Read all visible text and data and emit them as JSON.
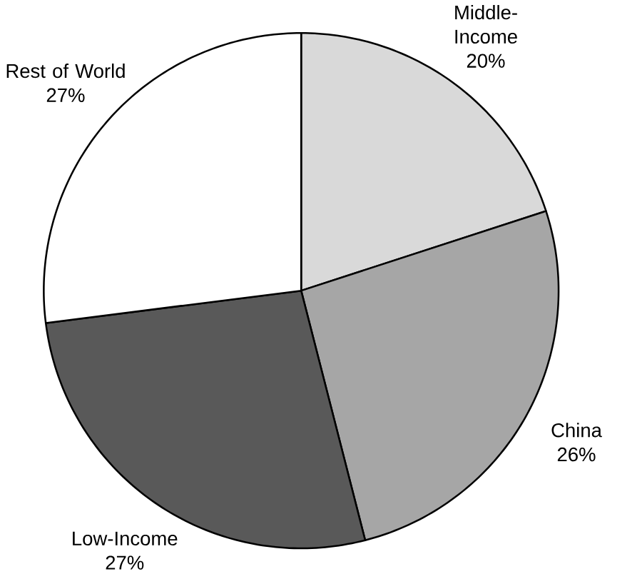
{
  "chart_data": {
    "type": "pie",
    "categories": [
      "Middle-Income",
      "China",
      "Low-Income",
      "Rest of World"
    ],
    "values": [
      20,
      26,
      27,
      27
    ],
    "colors": [
      "#d9d9d9",
      "#a6a6a6",
      "#595959",
      "#ffffff"
    ],
    "value_labels": [
      "20%",
      "26%",
      "27%",
      "27%"
    ]
  }
}
